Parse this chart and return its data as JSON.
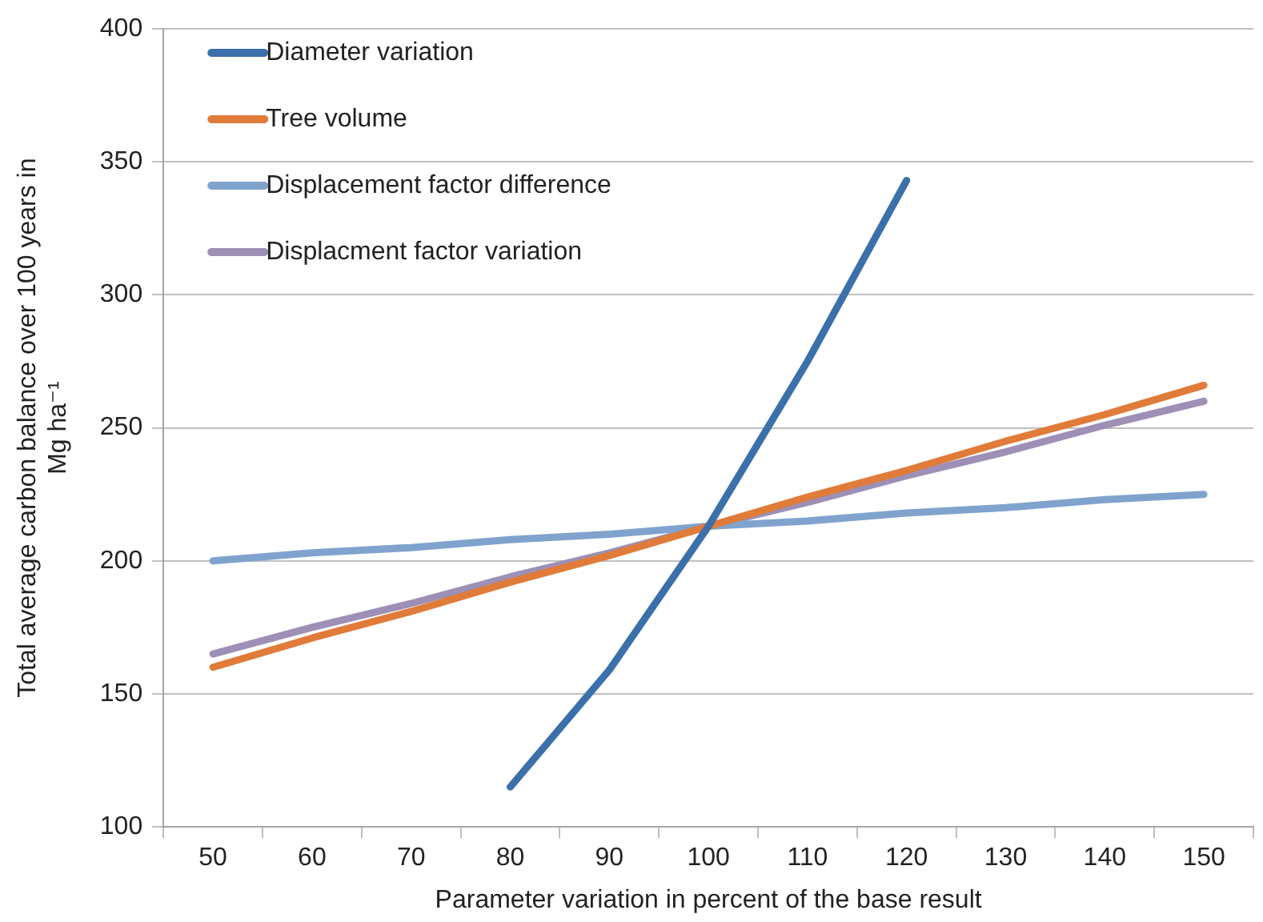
{
  "chart_data": {
    "type": "line",
    "xlabel": "Parameter variation in percent of the base result",
    "ylabel": "Total average carbon balance over 100 years in Mg ha⁻¹",
    "categories": [
      "50",
      "60",
      "70",
      "80",
      "90",
      "100",
      "110",
      "120",
      "130",
      "140",
      "150"
    ],
    "series": [
      {
        "name": "Diameter variation",
        "color": "#3b70aa",
        "values": [
          null,
          null,
          null,
          115,
          159,
          213,
          275,
          343,
          null,
          null,
          null
        ]
      },
      {
        "name": "Tree volume",
        "color": "#e07b39",
        "values": [
          160,
          171,
          181,
          192,
          202,
          213,
          224,
          234,
          245,
          255,
          266
        ]
      },
      {
        "name": "Displacement factor difference",
        "color": "#7fa3cd",
        "values": [
          200,
          203,
          205,
          208,
          210,
          213,
          215,
          218,
          220,
          223,
          225
        ]
      },
      {
        "name": "Displacment factor variation",
        "color": "#9d8fb5",
        "values": [
          165,
          175,
          184,
          194,
          203,
          213,
          222,
          232,
          241,
          251,
          260
        ]
      }
    ],
    "ylim": [
      100,
      400
    ],
    "yticks": [
      100,
      150,
      200,
      250,
      300,
      350,
      400
    ],
    "grid": "y",
    "legend": "top left",
    "marker": "none",
    "line_style": "solid"
  }
}
